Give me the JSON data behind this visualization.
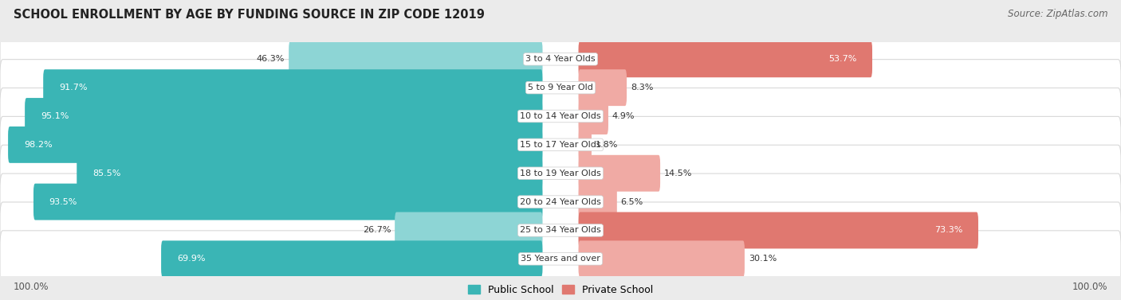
{
  "title": "SCHOOL ENROLLMENT BY AGE BY FUNDING SOURCE IN ZIP CODE 12019",
  "source": "Source: ZipAtlas.com",
  "categories": [
    "3 to 4 Year Olds",
    "5 to 9 Year Old",
    "10 to 14 Year Olds",
    "15 to 17 Year Olds",
    "18 to 19 Year Olds",
    "20 to 24 Year Olds",
    "25 to 34 Year Olds",
    "35 Years and over"
  ],
  "public_pct": [
    46.3,
    91.7,
    95.1,
    98.2,
    85.5,
    93.5,
    26.7,
    69.9
  ],
  "private_pct": [
    53.7,
    8.3,
    4.9,
    1.8,
    14.5,
    6.5,
    73.3,
    30.1
  ],
  "public_color_dark": "#3ab5b5",
  "public_color_light": "#8dd5d5",
  "private_color_dark": "#e07870",
  "private_color_light": "#f0aaa4",
  "row_bg_color": "#f5f5f5",
  "row_border_color": "#d8d8d8",
  "bg_color": "#ebebeb",
  "title_fontsize": 10.5,
  "label_fontsize": 8.0,
  "cat_fontsize": 8.0,
  "source_fontsize": 8.5,
  "axis_label": "100.0%"
}
